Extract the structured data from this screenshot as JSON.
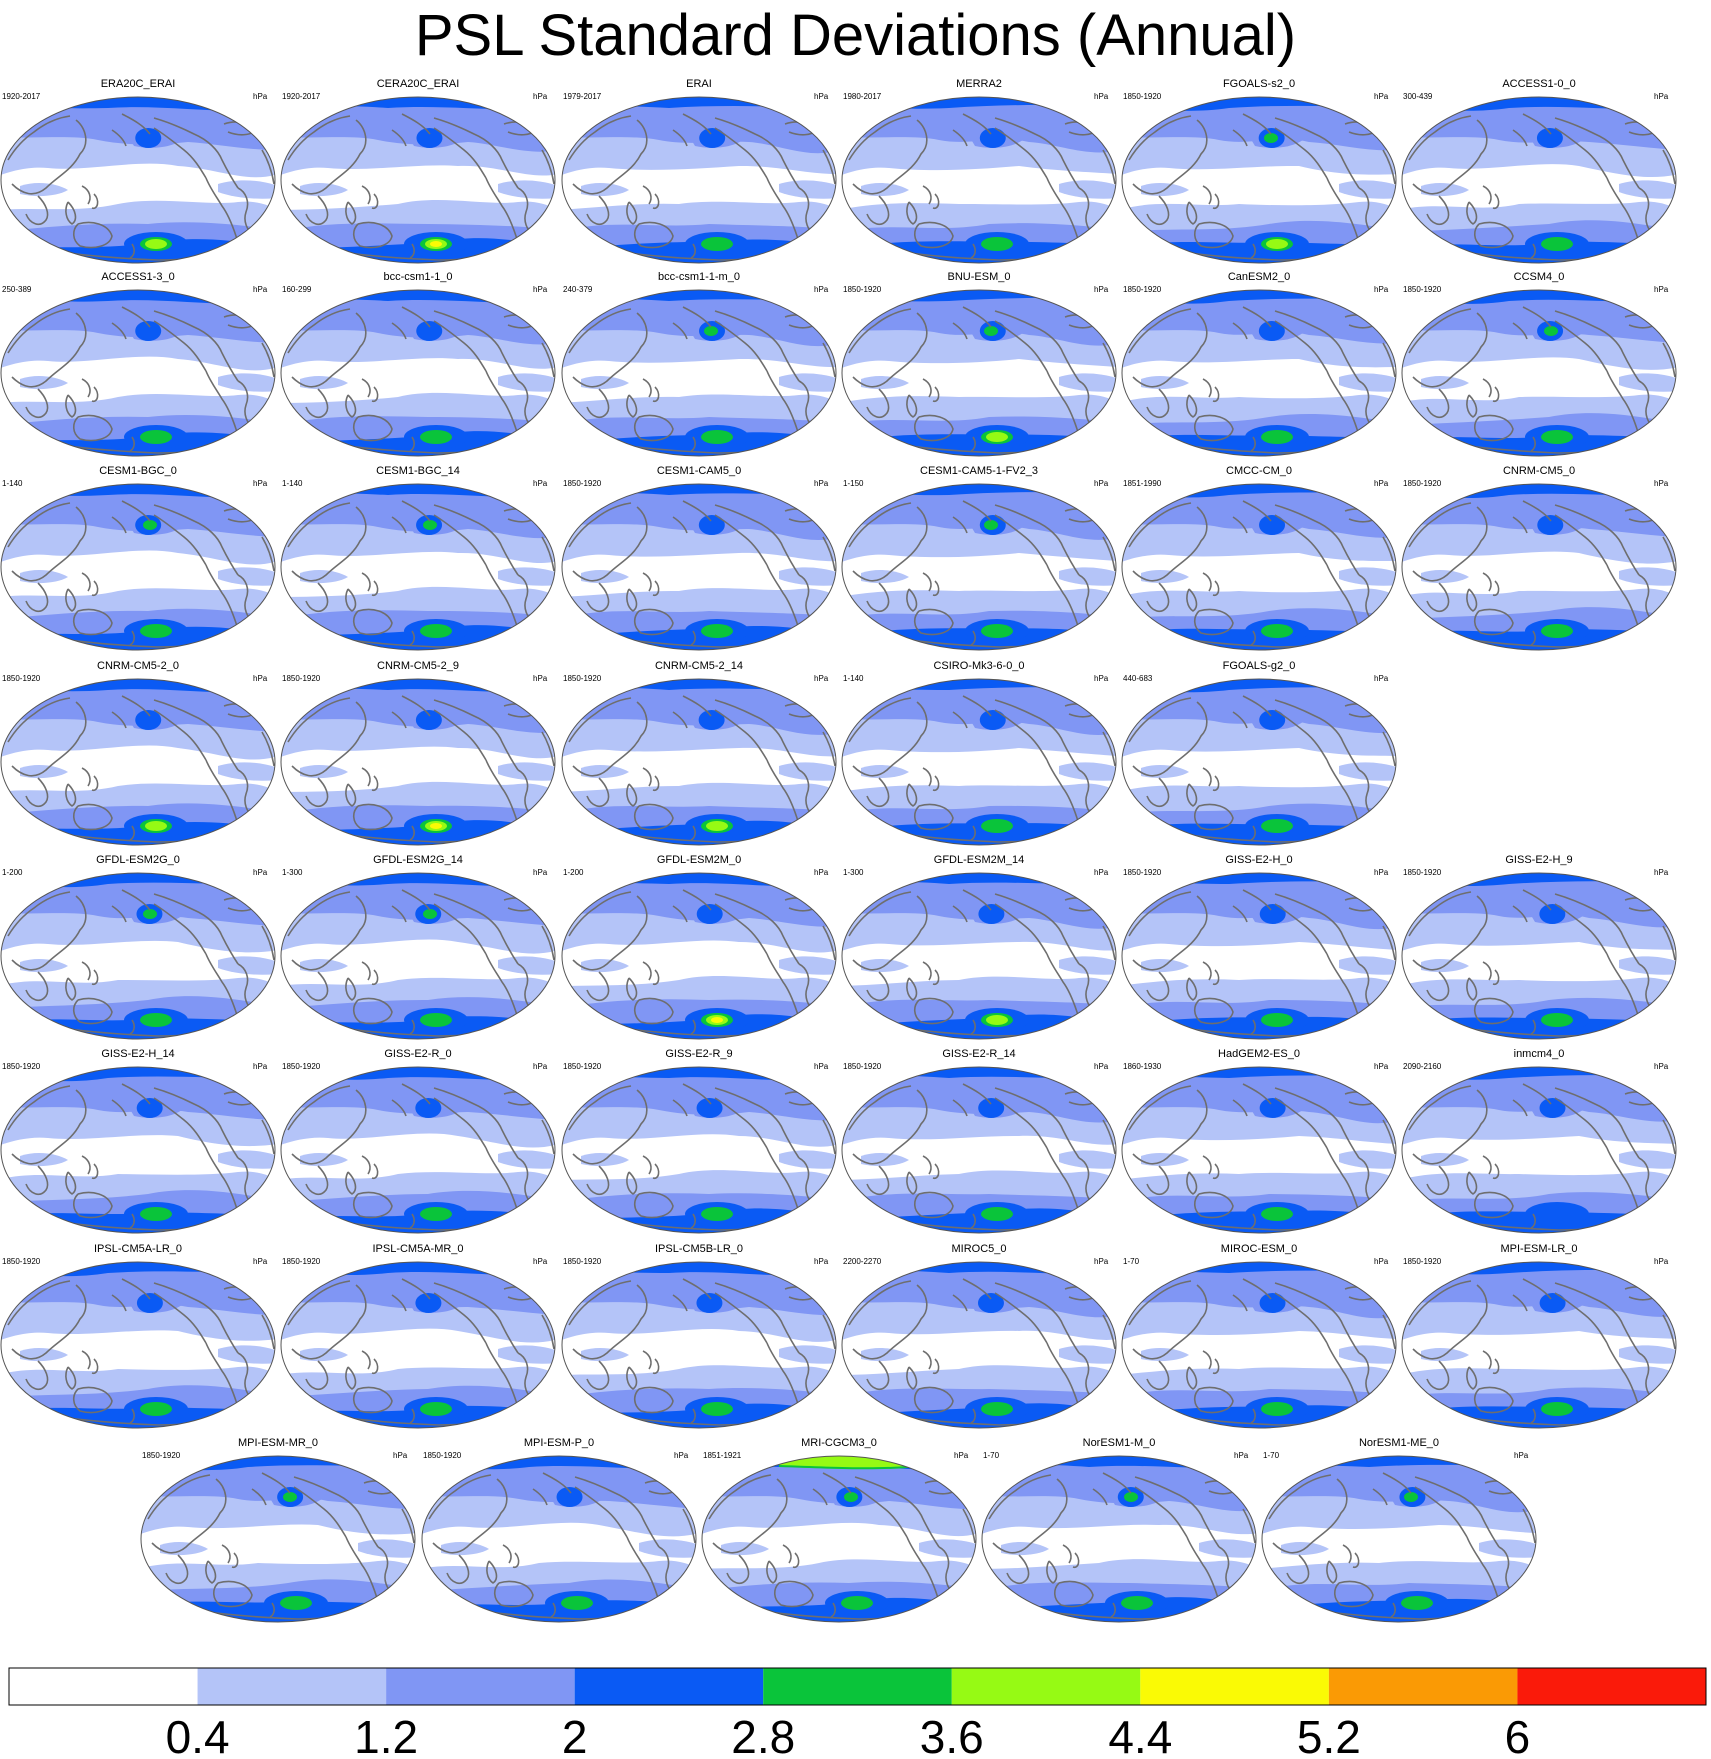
{
  "title": "PSL Standard Deviations (Annual)",
  "unit": "hPa",
  "chart_data": {
    "type": "map-grid",
    "variable": "PSL",
    "statistic": "Standard Deviations",
    "season": "Annual",
    "colorbar": {
      "levels": [
        0.4,
        1.2,
        2,
        2.8,
        3.6,
        4.4,
        5.2,
        6
      ],
      "tick_labels": [
        "0.4",
        "1.2",
        "2",
        "2.8",
        "3.6",
        "4.4",
        "5.2",
        "6"
      ],
      "colors": [
        "#ffffff",
        "#b4c4f8",
        "#8096f4",
        "#0a5af4",
        "#0ac43a",
        "#96fa14",
        "#fafa05",
        "#fa9a05",
        "#fa1a0a"
      ]
    },
    "panels": [
      {
        "name": "ERA20C_ERAI",
        "years": "1920-2017",
        "max": 4.0,
        "north": 2
      },
      {
        "name": "CERA20C_ERAI",
        "years": "1920-2017",
        "max": 4.6,
        "north": 2
      },
      {
        "name": "ERAI",
        "years": "1979-2017",
        "max": 3.4,
        "north": 2
      },
      {
        "name": "MERRA2",
        "years": "1980-2017",
        "max": 3.4,
        "north": 2
      },
      {
        "name": "FGOALS-s2_0",
        "years": "1850-1920",
        "max": 3.8,
        "north": 3
      },
      {
        "name": "ACCESS1-0_0",
        "years": "300-439",
        "max": 3.0,
        "north": 2
      },
      {
        "name": "ACCESS1-3_0",
        "years": "250-389",
        "max": 3.0,
        "north": 2
      },
      {
        "name": "bcc-csm1-1_0",
        "years": "160-299",
        "max": 3.0,
        "north": 2
      },
      {
        "name": "bcc-csm1-1-m_0",
        "years": "240-379",
        "max": 3.4,
        "north": 3
      },
      {
        "name": "BNU-ESM_0",
        "years": "1850-1920",
        "max": 4.2,
        "north": 3
      },
      {
        "name": "CanESM2_0",
        "years": "1850-1920",
        "max": 3.0,
        "north": 2
      },
      {
        "name": "CCSM4_0",
        "years": "1850-1920",
        "max": 3.0,
        "north": 3
      },
      {
        "name": "CESM1-BGC_0",
        "years": "1-140",
        "max": 3.4,
        "north": 3
      },
      {
        "name": "CESM1-BGC_14",
        "years": "1-140",
        "max": 3.4,
        "north": 3
      },
      {
        "name": "CESM1-CAM5_0",
        "years": "1850-1920",
        "max": 3.4,
        "north": 2
      },
      {
        "name": "CESM1-CAM5-1-FV2_3",
        "years": "1-150",
        "max": 3.4,
        "north": 3
      },
      {
        "name": "CMCC-CM_0",
        "years": "1851-1990",
        "max": 3.4,
        "north": 2
      },
      {
        "name": "CNRM-CM5_0",
        "years": "1850-1920",
        "max": 3.4,
        "north": 2
      },
      {
        "name": "CNRM-CM5-2_0",
        "years": "1850-1920",
        "max": 3.8,
        "north": 2
      },
      {
        "name": "CNRM-CM5-2_9",
        "years": "1850-1920",
        "max": 4.6,
        "north": 2
      },
      {
        "name": "CNRM-CM5-2_14",
        "years": "1850-1920",
        "max": 3.8,
        "north": 2
      },
      {
        "name": "CSIRO-Mk3-6-0_0",
        "years": "1-140",
        "max": 3.0,
        "north": 2
      },
      {
        "name": "FGOALS-g2_0",
        "years": "440-683",
        "max": 3.0,
        "north": 2
      },
      {
        "name": "GFDL-ESM2G_0",
        "years": "1-200",
        "max": 3.4,
        "north": 3
      },
      {
        "name": "GFDL-ESM2G_14",
        "years": "1-300",
        "max": 3.4,
        "north": 3
      },
      {
        "name": "GFDL-ESM2M_0",
        "years": "1-200",
        "max": 4.6,
        "north": 2
      },
      {
        "name": "GFDL-ESM2M_14",
        "years": "1-300",
        "max": 3.8,
        "north": 2
      },
      {
        "name": "GISS-E2-H_0",
        "years": "1850-1920",
        "max": 3.4,
        "north": 2
      },
      {
        "name": "GISS-E2-H_9",
        "years": "1850-1920",
        "max": 3.4,
        "north": 2
      },
      {
        "name": "GISS-E2-H_14",
        "years": "1850-1920",
        "max": 3.4,
        "north": 2
      },
      {
        "name": "GISS-E2-R_0",
        "years": "1850-1920",
        "max": 3.4,
        "north": 2
      },
      {
        "name": "GISS-E2-R_9",
        "years": "1850-1920",
        "max": 3.4,
        "north": 2
      },
      {
        "name": "GISS-E2-R_14",
        "years": "1850-1920",
        "max": 3.4,
        "north": 2
      },
      {
        "name": "HadGEM2-ES_0",
        "years": "1860-1930",
        "max": 3.0,
        "north": 2
      },
      {
        "name": "inmcm4_0",
        "years": "2090-2160",
        "max": 2.4,
        "north": 2
      },
      {
        "name": "IPSL-CM5A-LR_0",
        "years": "1850-1920",
        "max": 3.4,
        "north": 2
      },
      {
        "name": "IPSL-CM5A-MR_0",
        "years": "1850-1920",
        "max": 3.4,
        "north": 2
      },
      {
        "name": "IPSL-CM5B-LR_0",
        "years": "1850-1920",
        "max": 3.0,
        "north": 2
      },
      {
        "name": "MIROC5_0",
        "years": "2200-2270",
        "max": 3.4,
        "north": 2
      },
      {
        "name": "MIROC-ESM_0",
        "years": "1-70",
        "max": 3.0,
        "north": 2
      },
      {
        "name": "MPI-ESM-LR_0",
        "years": "1850-1920",
        "max": 3.0,
        "north": 2
      },
      {
        "name": "MPI-ESM-MR_0",
        "years": "1850-1920",
        "max": 3.4,
        "north": 3
      },
      {
        "name": "MPI-ESM-P_0",
        "years": "1850-1920",
        "max": 3.0,
        "north": 2
      },
      {
        "name": "MRI-CGCM3_0",
        "years": "1851-1921",
        "max": 3.4,
        "north": 5
      },
      {
        "name": "NorESM1-M_0",
        "years": "1-70",
        "max": 3.4,
        "north": 3
      },
      {
        "name": "NorESM1-ME_0",
        "years": "1-70",
        "max": 3.4,
        "north": 3
      }
    ]
  }
}
